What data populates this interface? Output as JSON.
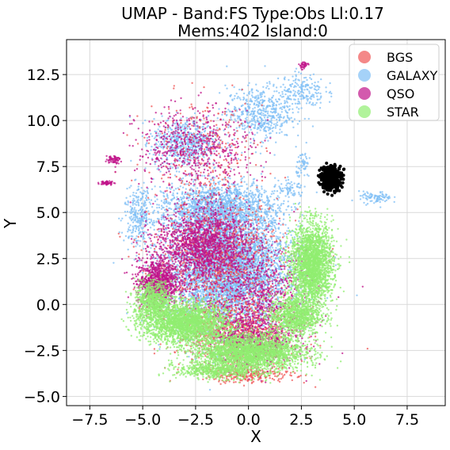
{
  "chart_data": {
    "type": "scatter",
    "title": [
      "UMAP  -  Band:FS Type:Obs Ll:0.17",
      "Mems:402 Island:0"
    ],
    "xlabel": "X",
    "ylabel": "Y",
    "xlim": [
      -8.6,
      9.3
    ],
    "ylim": [
      -5.5,
      14.4
    ],
    "xticks": [
      -7.5,
      -5.0,
      -2.5,
      0.0,
      2.5,
      5.0,
      7.5
    ],
    "xtick_labels": [
      "−7.5",
      "−5.0",
      "−2.5",
      "0.0",
      "2.5",
      "5.0",
      "7.5"
    ],
    "yticks": [
      -5.0,
      -2.5,
      0.0,
      2.5,
      5.0,
      7.5,
      10.0,
      12.5
    ],
    "ytick_labels": [
      "−5.0",
      "−2.5",
      "0.0",
      "2.5",
      "5.0",
      "7.5",
      "10.0",
      "12.5"
    ],
    "grid": true,
    "legend_position": "top-right",
    "series": [
      {
        "name": "GALAXY",
        "color": "#7fbff5",
        "clusters": [
          [
            -1.0,
            2.0,
            2.6,
            3.0,
            5200
          ],
          [
            -1.5,
            5.3,
            2.6,
            1.2,
            1400
          ],
          [
            -3.0,
            8.8,
            1.4,
            1.2,
            600
          ],
          [
            0.5,
            10.4,
            1.4,
            1.3,
            500
          ],
          [
            2.5,
            11.6,
            1.0,
            0.9,
            200
          ],
          [
            6.0,
            5.8,
            0.7,
            0.3,
            90
          ],
          [
            2.6,
            7.6,
            0.3,
            0.8,
            60
          ],
          [
            2.0,
            6.2,
            0.6,
            0.4,
            60
          ],
          [
            -5.2,
            4.8,
            0.6,
            1.4,
            250
          ]
        ],
        "range": [
          -7.2,
          7.0,
          -5.0,
          13.4
        ]
      },
      {
        "name": "BGS",
        "color": "#f05555",
        "clusters": [
          [
            -0.5,
            -1.5,
            2.6,
            1.8,
            900
          ],
          [
            -1.5,
            2.5,
            2.8,
            2.8,
            900
          ],
          [
            0.0,
            -3.8,
            2.0,
            0.4,
            250
          ],
          [
            -2.0,
            8.5,
            2.5,
            2.5,
            250
          ]
        ],
        "range": [
          -7.0,
          6.0,
          -4.5,
          13.2
        ]
      },
      {
        "name": "QSO",
        "color": "#c0148a",
        "clusters": [
          [
            -2.2,
            3.2,
            2.0,
            1.8,
            1500
          ],
          [
            -4.3,
            1.2,
            0.9,
            1.1,
            900
          ],
          [
            0.2,
            -2.0,
            1.8,
            1.3,
            700
          ],
          [
            -2.5,
            8.5,
            2.5,
            2.0,
            600
          ],
          [
            -6.7,
            6.6,
            0.3,
            0.1,
            60
          ],
          [
            -6.4,
            7.9,
            0.3,
            0.2,
            60
          ],
          [
            2.6,
            13.0,
            0.2,
            0.2,
            40
          ],
          [
            0.5,
            0.5,
            2.5,
            2.5,
            800
          ]
        ],
        "range": [
          -7.3,
          6.0,
          -4.5,
          13.3
        ]
      },
      {
        "name": "STAR",
        "color": "#90ee70",
        "clusters": [
          [
            -3.0,
            -1.0,
            1.8,
            1.0,
            2200
          ],
          [
            0.0,
            -2.6,
            2.4,
            0.9,
            2500
          ],
          [
            3.0,
            2.2,
            0.9,
            2.0,
            2400
          ],
          [
            2.2,
            -0.6,
            1.1,
            1.0,
            1000
          ],
          [
            -4.5,
            0.2,
            0.8,
            1.0,
            700
          ],
          [
            -1.5,
            -3.6,
            1.8,
            0.4,
            500
          ]
        ],
        "range": [
          -6.0,
          4.8,
          -4.4,
          5.6
        ]
      },
      {
        "name": "",
        "color": "#000000",
        "members": 402,
        "clusters": [
          [
            3.9,
            6.9,
            0.45,
            0.6,
            402
          ]
        ],
        "range": [
          3.0,
          5.0,
          5.6,
          7.9
        ]
      }
    ],
    "legend": [
      {
        "label": "BGS",
        "color": "#f05555"
      },
      {
        "label": "GALAXY",
        "color": "#7fbff5"
      },
      {
        "label": "QSO",
        "color": "#c0148a"
      },
      {
        "label": "STAR",
        "color": "#90ee70"
      }
    ]
  }
}
